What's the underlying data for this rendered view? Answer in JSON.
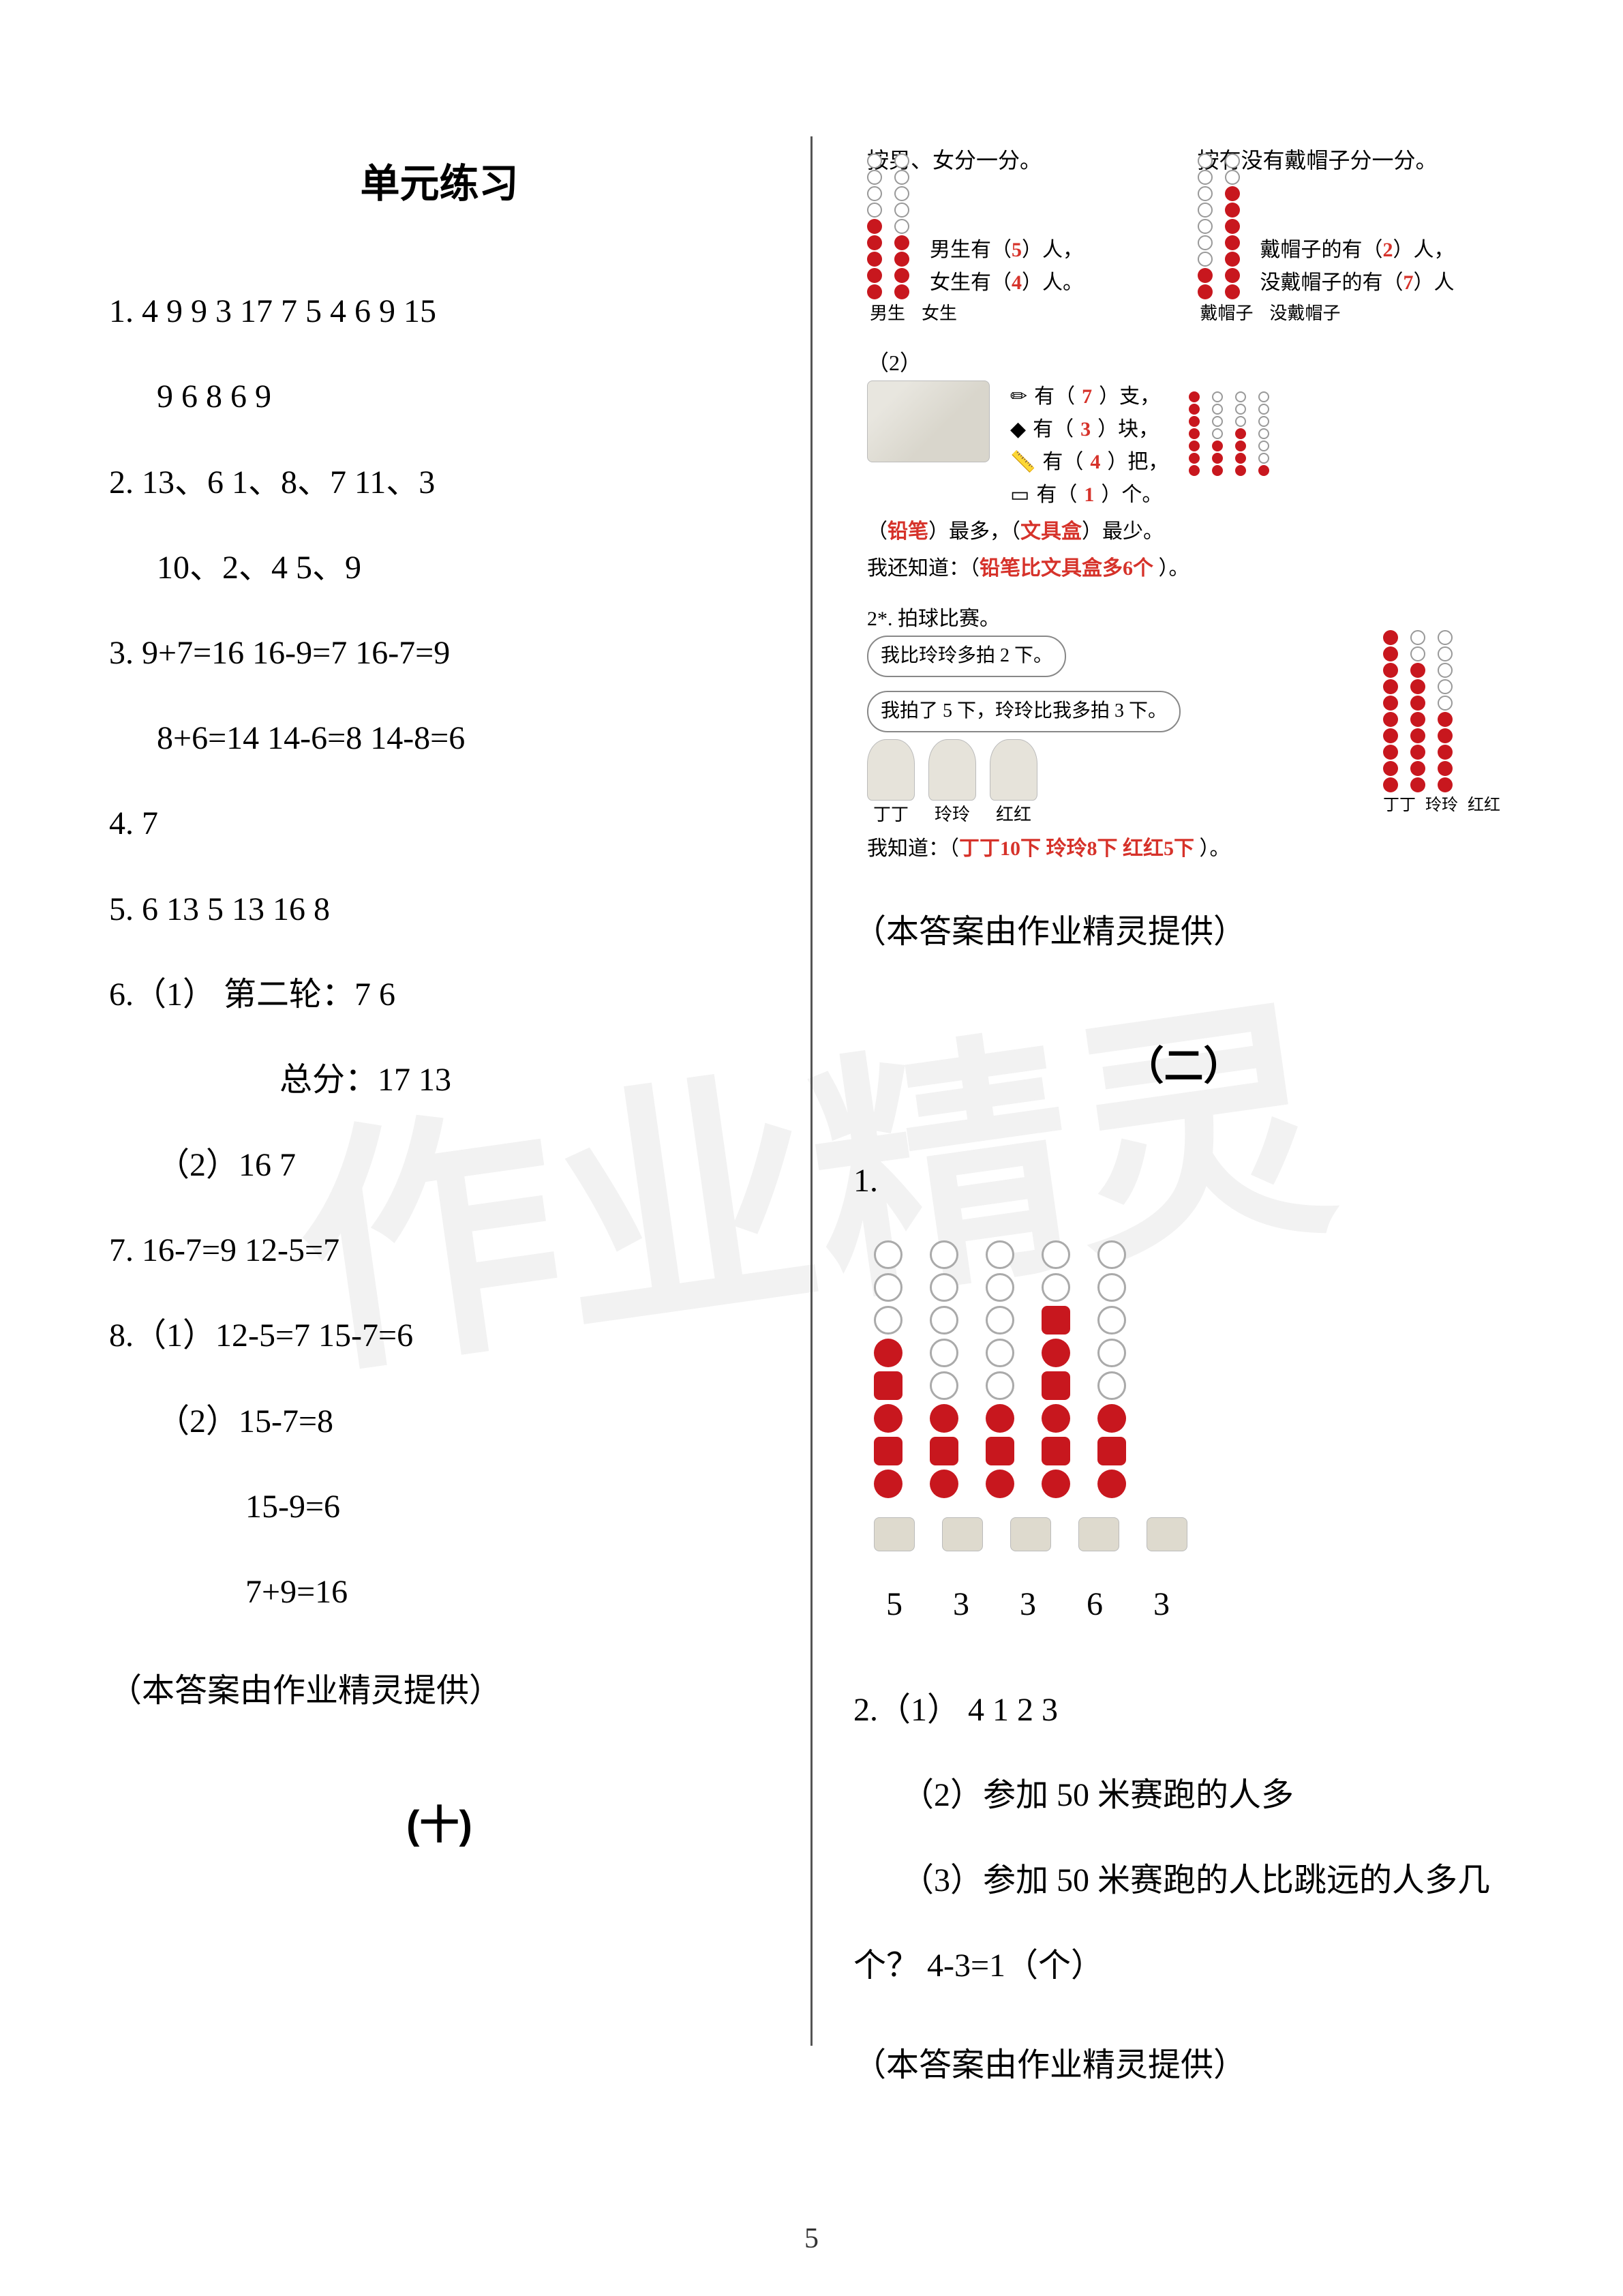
{
  "page_number": "5",
  "watermark_text": "作业精灵",
  "credit": "（本答案由作业精灵提供）",
  "left": {
    "title": "单元练习",
    "q1_l1": "1. 4   9   9   3   17   7 5   4   6   9   15",
    "q1_l2": "9   6   8   6   9",
    "q2_l1": "2. 13、6       1、8、7     11、3",
    "q2_l2": "10、2、4     5、9",
    "q3_l1": "3. 9+7=16   16-9=7   16-7=9",
    "q3_l2": "8+6=14   14-6=8   14-8=6",
    "q4": "4. 7",
    "q5": "5. 6   13   5   13   16   8",
    "q6_l1": "6.（1） 第二轮：7     6",
    "q6_l2": "总分：17   13",
    "q6_l3": "（2）16   7",
    "q7": "7. 16-7=9     12-5=7",
    "q8_l1": "8.（1）12-5=7   15-7=6",
    "q8_l2": "（2）15-7=8",
    "q8_l3": "15-9=6",
    "q8_l4": "7+9=16",
    "section10": "(十)"
  },
  "right": {
    "d1": {
      "left_title": "按男、女分一分。",
      "right_title": "按有没有戴帽子分一分。",
      "boys_text_a": "男生有（",
      "boys_val": "5",
      "boys_text_b": "）人，",
      "girls_text_a": "女生有（",
      "girls_val": "4",
      "girls_text_b": "）人。",
      "hat_text_a": "戴帽子的有（",
      "hat_val": "2",
      "hat_text_b": "）人，",
      "nohat_text_a": "没戴帽子的有（",
      "nohat_val": "7",
      "nohat_text_b": "）人",
      "label_boy": "男生",
      "label_girl": "女生",
      "label_hat": "戴帽子",
      "label_nohat": "没戴帽子",
      "part2_marker": "（2）",
      "row_a_a": "有（",
      "row_a_v": "7",
      "row_a_b": "）支，",
      "row_b_a": "有（",
      "row_b_v": "3",
      "row_b_b": "）块，",
      "row_c_a": "有（",
      "row_c_v": "4",
      "row_c_b": "）把，",
      "row_d_a": "有（",
      "row_d_v": "1",
      "row_d_b": "）个。",
      "most_a": "（",
      "most_v": "铅笔",
      "most_b": "）最多，（",
      "least_v": "文具盒",
      "least_b": "）最少。",
      "know_a": "我还知道：（",
      "know_v": "铅笔比文具盒多6个",
      "know_b": "         ）。",
      "q2star": "2*. 拍球比赛。",
      "bubble1": "我比玲玲多拍 2 下。",
      "bubble2": "我拍了 5 下，玲玲比我多拍 3 下。",
      "kid1": "丁丁",
      "kid2": "玲玲",
      "kid3": "红红",
      "know2_a": "我知道：（",
      "know2_v": "丁丁10下  玲玲8下  红红5下",
      "know2_b": "          ）。",
      "axis_k1": "丁丁",
      "axis_k2": "玲玲",
      "axis_k3": "红红"
    },
    "section2_title": "（二）",
    "s2_q1": "1.",
    "s2_counts": [
      "5",
      "3",
      "3",
      "6",
      "3"
    ],
    "s2_q2_l1": "2.（1） 4    1    2    3",
    "s2_q2_l2": "（2）参加 50 米赛跑的人多",
    "s2_q2_l3": "（3）参加 50 米赛跑的人比跳远的人多几",
    "s2_q2_l4": "个？   4-3=1（个）"
  },
  "colors": {
    "red": "#c8171e",
    "ans_red": "#d6322a",
    "grey": "#999999",
    "text": "#000000",
    "watermark": "#f2f2f2"
  },
  "bead_data": {
    "d1_left_boys_fill": 5,
    "d1_left_boys_total": 9,
    "d1_left_girls_fill": 4,
    "d1_left_girls_total": 9,
    "d1_right_hat_fill": 2,
    "d1_right_hat_total": 9,
    "d1_right_nohat_fill": 7,
    "d1_right_nohat_total": 9,
    "stationery_cols": [
      7,
      3,
      4,
      1
    ],
    "ball_cols": [
      10,
      8,
      5
    ],
    "section2_grid": [
      {
        "fill": 5,
        "total": 8
      },
      {
        "fill": 3,
        "total": 8
      },
      {
        "fill": 3,
        "total": 8
      },
      {
        "fill": 6,
        "total": 8
      },
      {
        "fill": 3,
        "total": 8
      }
    ]
  }
}
